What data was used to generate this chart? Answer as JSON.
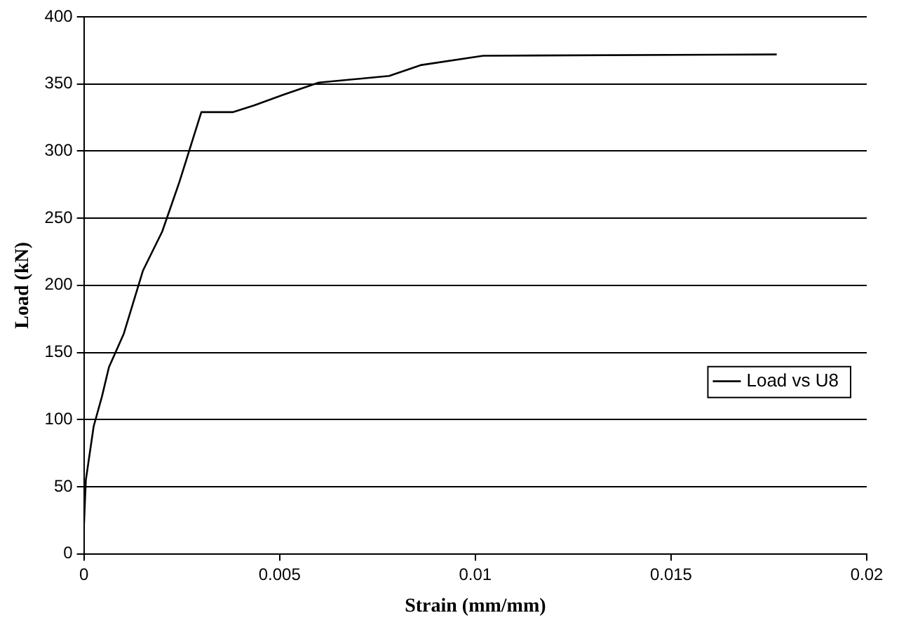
{
  "chart_data": {
    "type": "line",
    "xlabel": "Strain (mm/mm)",
    "ylabel": "Load (kN)",
    "x": [
      0,
      5e-05,
      0.00025,
      0.00046,
      0.00064,
      0.00102,
      0.00151,
      0.002,
      0.00244,
      0.003,
      0.0038,
      0.00435,
      0.0051,
      0.006,
      0.0078,
      0.0086,
      0.0102,
      0.0177
    ],
    "series": [
      {
        "name": "Load vs U8",
        "color": "#000000",
        "values": [
          20,
          55,
          95,
          117,
          139,
          164,
          211,
          240,
          277,
          329,
          329,
          334,
          342,
          351,
          356,
          364,
          371,
          372
        ]
      }
    ],
    "xlim": [
      0,
      0.02
    ],
    "xticks": [
      0,
      0.005,
      0.01,
      0.015,
      0.02
    ],
    "ylim": [
      0,
      400
    ],
    "yticks": [
      0,
      50,
      100,
      150,
      200,
      250,
      300,
      350,
      400
    ],
    "grid": "y",
    "legend": "right",
    "marker": "none",
    "line_style": "solid"
  }
}
